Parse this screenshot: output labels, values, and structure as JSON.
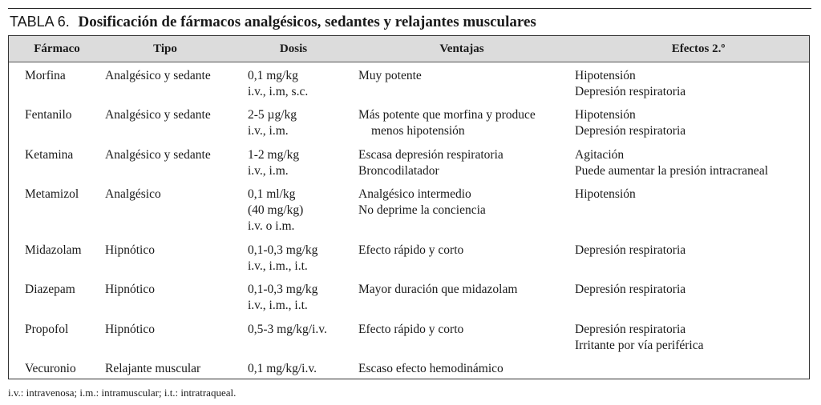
{
  "caption": {
    "label": "TABLA 6.",
    "title": "Dosificación de fármacos analgésicos, sedantes y relajantes musculares"
  },
  "headers": [
    "Fármaco",
    "Tipo",
    "Dosis",
    "Ventajas",
    "Efectos 2.º"
  ],
  "rows": [
    {
      "farmaco": "Morfina",
      "tipo": "Analgésico y sedante",
      "dosis": [
        "0,1 mg/kg",
        "i.v., i.m, s.c."
      ],
      "ventajas": [
        "Muy potente"
      ],
      "efectos": [
        "Hipotensión",
        "Depresión respiratoria"
      ]
    },
    {
      "farmaco": "Fentanilo",
      "tipo": "Analgésico y sedante",
      "dosis": [
        "2-5 µg/kg",
        "i.v., i.m."
      ],
      "ventajas": [
        "Más potente que morfina y produce",
        "menos hipotensión"
      ],
      "efectos": [
        "Hipotensión",
        "Depresión respiratoria"
      ]
    },
    {
      "farmaco": "Ketamina",
      "tipo": "Analgésico y sedante",
      "dosis": [
        "1-2 mg/kg",
        "i.v., i.m."
      ],
      "ventajas": [
        "Escasa depresión respiratoria",
        "Broncodilatador"
      ],
      "efectos": [
        "Agitación",
        "Puede aumentar la presión intracraneal"
      ]
    },
    {
      "farmaco": "Metamizol",
      "tipo": "Analgésico",
      "dosis": [
        "0,1 ml/kg",
        "(40 mg/kg)",
        "i.v. o i.m."
      ],
      "ventajas": [
        "Analgésico intermedio",
        "No deprime la conciencia"
      ],
      "efectos": [
        "Hipotensión"
      ]
    },
    {
      "farmaco": "Midazolam",
      "tipo": "Hipnótico",
      "dosis": [
        "0,1-0,3 mg/kg",
        "i.v., i.m., i.t."
      ],
      "ventajas": [
        "Efecto rápido y corto"
      ],
      "efectos": [
        "Depresión respiratoria"
      ]
    },
    {
      "farmaco": "Diazepam",
      "tipo": "Hipnótico",
      "dosis": [
        "0,1-0,3 mg/kg",
        "i.v., i.m., i.t."
      ],
      "ventajas": [
        "Mayor duración que midazolam"
      ],
      "efectos": [
        "Depresión respiratoria"
      ]
    },
    {
      "farmaco": "Propofol",
      "tipo": "Hipnótico",
      "dosis": [
        "0,5-3 mg/kg/i.v."
      ],
      "ventajas": [
        "Efecto rápido y corto"
      ],
      "efectos": [
        "Depresión respiratoria",
        "Irritante por vía periférica"
      ]
    },
    {
      "farmaco": "Vecuronio",
      "tipo": "Relajante muscular",
      "dosis": [
        "0,1 mg/kg/i.v."
      ],
      "ventajas": [
        "Escaso efecto hemodinámico"
      ],
      "efectos": []
    }
  ],
  "footnote": "i.v.: intravenosa; i.m.: intramuscular; i.t.: intratraqueal."
}
